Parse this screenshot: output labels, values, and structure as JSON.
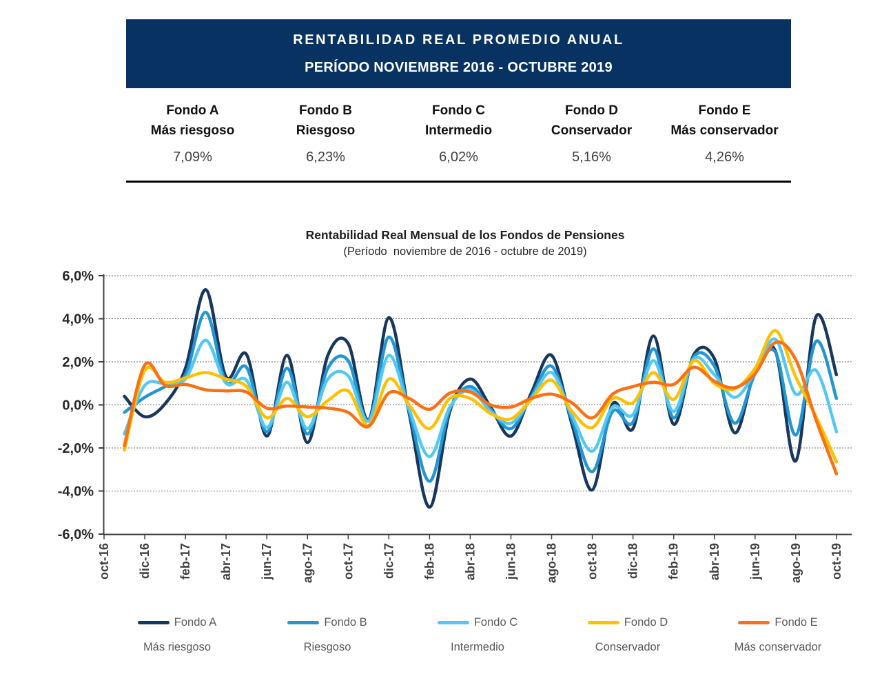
{
  "banner": {
    "title": "RENTABILIDAD REAL PROMEDIO ANUAL",
    "subtitle": "PERÍODO NOVIEMBRE 2016 - OCTUBRE 2019",
    "bg_color": "#083262",
    "text_color": "#ffffff"
  },
  "funds_table": {
    "columns": [
      {
        "name": "Fondo A",
        "risk": "Más riesgoso",
        "value": "7,09%"
      },
      {
        "name": "Fondo B",
        "risk": "Riesgoso",
        "value": "6,23%"
      },
      {
        "name": "Fondo C",
        "risk": "Intermedio",
        "value": "6,02%"
      },
      {
        "name": "Fondo D",
        "risk": "Conservador",
        "value": "5,16%"
      },
      {
        "name": "Fondo E",
        "risk": "Más conservador",
        "value": "4,26%"
      }
    ]
  },
  "chart_data": {
    "type": "line",
    "title": "Rentabilidad Real Mensual de los Fondos de Pensiones",
    "subtitle": "(Período  noviembre de 2016 - octubre de 2019)",
    "ylabel": "",
    "xlabel": "",
    "ylim": [
      -6,
      6
    ],
    "y_tick_values": [
      6,
      4,
      2,
      0,
      -2,
      -4,
      -6
    ],
    "y_tick_labels": [
      "6,0%",
      "4,0%",
      "2,0%",
      "0,0%",
      "-2,0%",
      "-4,0%",
      "-6,0%"
    ],
    "x_tick_labels": [
      "oct-16",
      "dic-16",
      "feb-17",
      "abr-17",
      "jun-17",
      "ago-17",
      "oct-17",
      "dic-17",
      "feb-18",
      "abr-18",
      "jun-18",
      "ago-18",
      "oct-18",
      "dic-18",
      "feb-19",
      "abr-19",
      "jun-19",
      "ago-19",
      "oct-19"
    ],
    "x": [
      "nov-16",
      "dic-16",
      "ene-17",
      "feb-17",
      "mar-17",
      "abr-17",
      "may-17",
      "jun-17",
      "jul-17",
      "ago-17",
      "sep-17",
      "oct-17",
      "nov-17",
      "dic-17",
      "ene-18",
      "feb-18",
      "mar-18",
      "abr-18",
      "may-18",
      "jun-18",
      "jul-18",
      "ago-18",
      "sep-18",
      "oct-18",
      "nov-18",
      "dic-18",
      "ene-19",
      "feb-19",
      "mar-19",
      "abr-19",
      "may-19",
      "jun-19",
      "jul-19",
      "ago-19",
      "sep-19",
      "oct-19"
    ],
    "grid": "horizontal-dotted",
    "legend_position": "bottom",
    "axis_color": "#404040",
    "grid_color": "#6e6e6e",
    "series": [
      {
        "name": "Fondo A",
        "risk": "Más riesgoso",
        "color": "#17375E",
        "values": [
          0.4,
          -0.55,
          0.05,
          1.7,
          5.35,
          1.3,
          2.35,
          -1.45,
          2.3,
          -1.75,
          2.3,
          2.85,
          -0.7,
          4.05,
          -0.4,
          -4.75,
          -0.3,
          1.2,
          -0.1,
          -1.45,
          0.55,
          2.3,
          -0.9,
          -3.95,
          0.05,
          -1.1,
          3.2,
          -0.9,
          2.35,
          2.15,
          -1.3,
          1.6,
          2.5,
          -2.6,
          4.1,
          1.4
        ]
      },
      {
        "name": "Fondo B",
        "risk": "Riesgoso",
        "color": "#2196D3",
        "values": [
          -0.35,
          0.35,
          0.85,
          1.4,
          4.3,
          1.05,
          1.75,
          -1.25,
          1.7,
          -1.35,
          1.7,
          2.05,
          -0.75,
          3.15,
          -0.3,
          -3.55,
          -0.2,
          0.85,
          -0.2,
          -1.1,
          0.4,
          1.8,
          -0.7,
          -3.1,
          -0.3,
          -0.8,
          2.6,
          -0.6,
          2.25,
          1.8,
          -0.85,
          1.45,
          2.45,
          -1.4,
          2.95,
          0.3
        ]
      },
      {
        "name": "Fondo C",
        "risk": "Intermedio",
        "color": "#55C8F2",
        "values": [
          -1.35,
          0.9,
          1.0,
          1.2,
          3.0,
          1.0,
          1.15,
          -1.05,
          1.05,
          -1.1,
          1.2,
          1.35,
          -0.75,
          2.3,
          -0.2,
          -2.4,
          -0.1,
          0.7,
          -0.3,
          -0.85,
          0.3,
          1.5,
          -0.5,
          -2.15,
          -0.1,
          -0.45,
          2.05,
          -0.3,
          2.15,
          1.4,
          0.35,
          1.5,
          3.05,
          0.5,
          1.6,
          -1.25
        ]
      },
      {
        "name": "Fondo D",
        "risk": "Conservador",
        "color": "#FFC000",
        "values": [
          -2.1,
          1.6,
          1.05,
          1.25,
          1.5,
          1.2,
          0.85,
          -0.6,
          0.3,
          -0.55,
          0.2,
          0.65,
          -0.95,
          1.2,
          0.0,
          -1.1,
          0.3,
          0.3,
          -0.4,
          -0.65,
          0.25,
          1.15,
          -0.3,
          -1.05,
          0.3,
          0.1,
          1.5,
          0.25,
          2.05,
          1.0,
          0.75,
          1.7,
          3.45,
          1.3,
          -0.55,
          -2.65
        ]
      },
      {
        "name": "Fondo E",
        "risk": "Más conservador",
        "color": "#FA7115",
        "values": [
          -1.9,
          1.85,
          0.9,
          0.95,
          0.7,
          0.65,
          0.6,
          -0.15,
          -0.05,
          -0.1,
          -0.15,
          -0.35,
          -1.0,
          0.55,
          0.3,
          -0.2,
          0.55,
          0.6,
          0.0,
          -0.1,
          0.3,
          0.5,
          0.1,
          -0.6,
          0.5,
          0.85,
          1.05,
          0.95,
          1.75,
          1.1,
          0.8,
          1.45,
          2.9,
          2.1,
          -0.7,
          -3.2
        ]
      }
    ]
  }
}
